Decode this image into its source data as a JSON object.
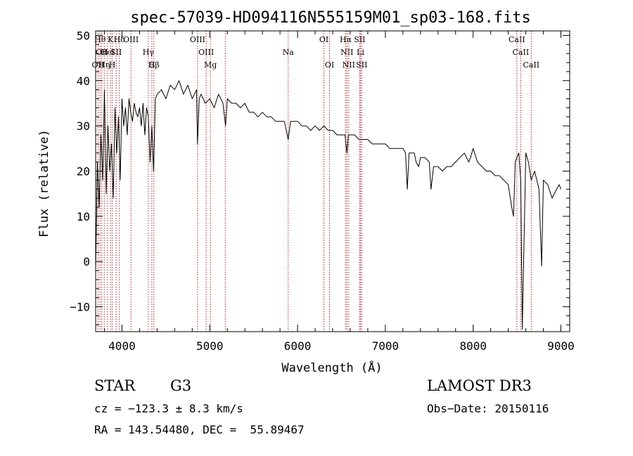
{
  "chart_data": {
    "type": "line",
    "title": "spec-57039-HD094116N555159M01_sp03-168.fits",
    "xlabel": "Wavelength (Å)",
    "ylabel": "Flux (relative)",
    "xlim": [
      3700,
      9100
    ],
    "ylim": [
      -15.5,
      51
    ],
    "xticks": [
      4000,
      5000,
      6000,
      7000,
      8000,
      9000
    ],
    "yticks": [
      -10,
      0,
      10,
      20,
      30,
      40,
      50
    ],
    "grid": false,
    "line_color": "#000000",
    "marker_color": "#b22222",
    "series": [
      {
        "x": [
          3700,
          3720,
          3740,
          3760,
          3780,
          3800,
          3820,
          3840,
          3860,
          3880,
          3900,
          3920,
          3940,
          3960,
          3980,
          4000,
          4020,
          4040,
          4060,
          4080,
          4100,
          4120,
          4140,
          4160,
          4180,
          4200,
          4220,
          4240,
          4260,
          4280,
          4300,
          4320,
          4340,
          4360,
          4380,
          4400,
          4450,
          4500,
          4550,
          4600,
          4650,
          4700,
          4750,
          4800,
          4850,
          4860,
          4880,
          4900,
          4950,
          5000,
          5050,
          5100,
          5150,
          5180,
          5200,
          5250,
          5300,
          5350,
          5400,
          5450,
          5500,
          5550,
          5600,
          5650,
          5700,
          5750,
          5800,
          5850,
          5893,
          5920,
          5950,
          6000,
          6050,
          6100,
          6150,
          6200,
          6250,
          6300,
          6350,
          6400,
          6450,
          6500,
          6540,
          6563,
          6580,
          6600,
          6650,
          6700,
          6750,
          6800,
          6850,
          6900,
          6950,
          7000,
          7050,
          7100,
          7150,
          7200,
          7230,
          7250,
          7270,
          7300,
          7330,
          7350,
          7380,
          7400,
          7450,
          7500,
          7520,
          7550,
          7600,
          7650,
          7700,
          7750,
          7800,
          7850,
          7900,
          7950,
          7970,
          8000,
          8050,
          8100,
          8150,
          8200,
          8250,
          8300,
          8350,
          8400,
          8440,
          8460,
          8480,
          8498,
          8520,
          8542,
          8560,
          8600,
          8630,
          8662,
          8700,
          8750,
          8780,
          8800,
          8850,
          8900,
          8950,
          8980,
          9000
        ],
        "y": [
          -2,
          22,
          12,
          28,
          18,
          38,
          15,
          30,
          20,
          26,
          14,
          34,
          24,
          32,
          18,
          36,
          30,
          34,
          28,
          36,
          33,
          31,
          35,
          33,
          32,
          34,
          30,
          35,
          28,
          34,
          32,
          22,
          30,
          20,
          36,
          37,
          38,
          36,
          39,
          38,
          40,
          37,
          39,
          36,
          38,
          26,
          36,
          37,
          35,
          36,
          34,
          37,
          35,
          30,
          36,
          35,
          35,
          34,
          35,
          33,
          33,
          32,
          33,
          32,
          32,
          31,
          31,
          31,
          27,
          31,
          31,
          31,
          30,
          30,
          29,
          30,
          29,
          30,
          29,
          29,
          28,
          28,
          28,
          24,
          28,
          28,
          28,
          27,
          27,
          27,
          26,
          26,
          26,
          26,
          25,
          25,
          25,
          25,
          24,
          16,
          24,
          24,
          24,
          22,
          21,
          23,
          23,
          22,
          16,
          21,
          21,
          20,
          21,
          21,
          22,
          23,
          24,
          22,
          23,
          25,
          22,
          21,
          20,
          20,
          19,
          19,
          18,
          17,
          12,
          10,
          22,
          23,
          24,
          18,
          -15,
          24,
          22,
          18,
          20,
          16,
          -1,
          18,
          17,
          14,
          16,
          17,
          16
        ]
      }
    ],
    "line_markers": [
      {
        "wavelength": 3727,
        "label": "OII",
        "row": 3
      },
      {
        "wavelength": 3750,
        "label": "Hθ",
        "row": 1
      },
      {
        "wavelength": 3770,
        "label": "OII",
        "row": 2
      },
      {
        "wavelength": 3798,
        "label": "Hη",
        "row": 3
      },
      {
        "wavelength": 3835,
        "label": "HeI",
        "row": 2
      },
      {
        "wavelength": 3869,
        "label": "K",
        "row": 1
      },
      {
        "wavelength": 3889,
        "label": "H",
        "row": 3
      },
      {
        "wavelength": 3934,
        "label": "SII",
        "row": 2
      },
      {
        "wavelength": 3970,
        "label": "Hδ",
        "row": 1
      },
      {
        "wavelength": 4102,
        "label": "OIII",
        "row": 1
      },
      {
        "wavelength": 4300,
        "label": "Hγ",
        "row": 2
      },
      {
        "wavelength": 4340,
        "label": "G",
        "row": 3
      },
      {
        "wavelength": 4363,
        "label": "Hβ",
        "row": 3
      },
      {
        "wavelength": 4861,
        "label": "OIII",
        "row": 1
      },
      {
        "wavelength": 4959,
        "label": "OIII",
        "row": 2
      },
      {
        "wavelength": 5007,
        "label": "Mg",
        "row": 3
      },
      {
        "wavelength": 5177,
        "label": "",
        "row": 0
      },
      {
        "wavelength": 5893,
        "label": "Na",
        "row": 2
      },
      {
        "wavelength": 6300,
        "label": "OI",
        "row": 1
      },
      {
        "wavelength": 6364,
        "label": "OI",
        "row": 3
      },
      {
        "wavelength": 6548,
        "label": "Hα",
        "row": 1
      },
      {
        "wavelength": 6563,
        "label": "NII",
        "row": 2
      },
      {
        "wavelength": 6583,
        "label": "NII",
        "row": 3
      },
      {
        "wavelength": 6707,
        "label": "SII",
        "row": 1
      },
      {
        "wavelength": 6717,
        "label": "Li",
        "row": 2
      },
      {
        "wavelength": 6731,
        "label": "SII",
        "row": 3
      },
      {
        "wavelength": 8498,
        "label": "CaII",
        "row": 1
      },
      {
        "wavelength": 8542,
        "label": "CaII",
        "row": 2
      },
      {
        "wavelength": 8662,
        "label": "CaII",
        "row": 3
      }
    ]
  },
  "info": {
    "object_class": "STAR",
    "subclass": "G3",
    "survey": "LAMOST DR3",
    "cz": "cz = −123.3 ± 8.3 km/s",
    "obs_date": "Obs−Date: 20150116",
    "coords": "RA = 143.54480, DEC =  55.89467"
  }
}
